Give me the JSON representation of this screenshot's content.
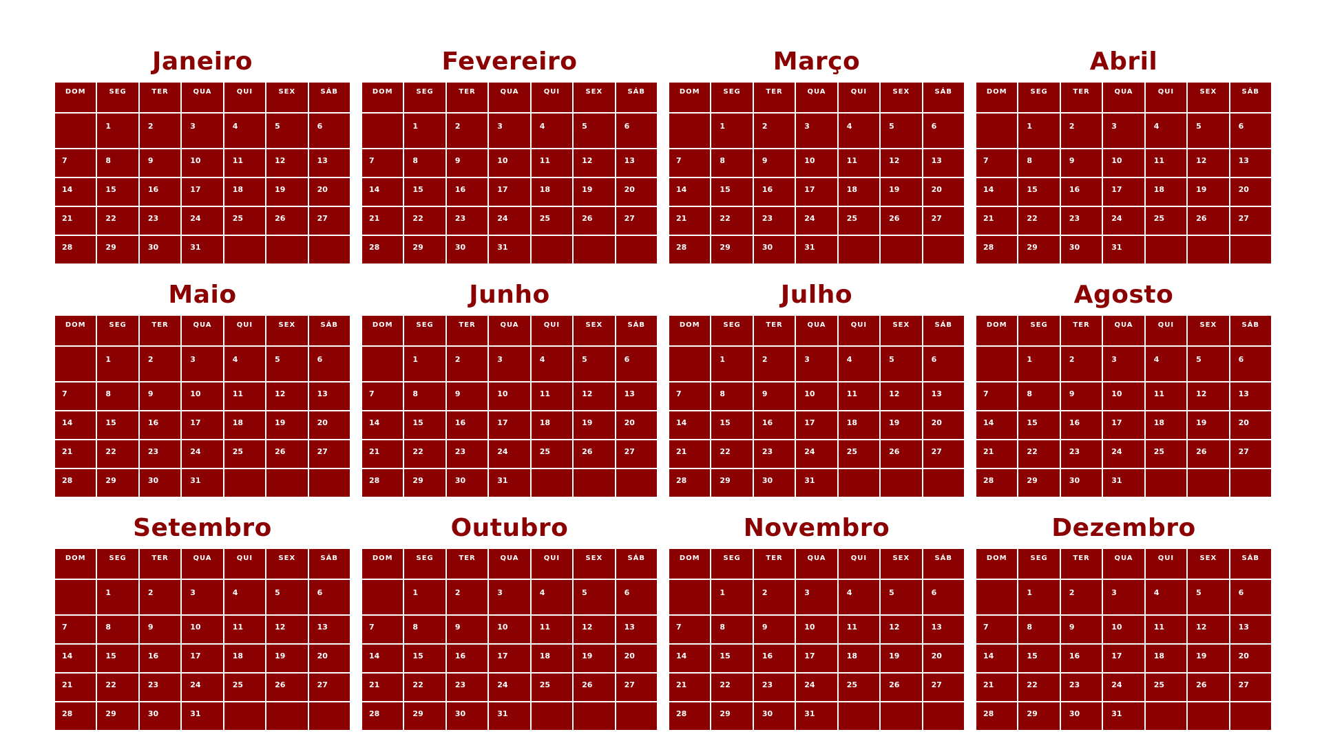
{
  "colors": {
    "accent": "#8b0000",
    "background": "#ffffff",
    "text_on_accent": "#ffffff"
  },
  "weekdays": [
    "DOM",
    "SEG",
    "TER",
    "QUA",
    "QUI",
    "SEX",
    "SÁB"
  ],
  "days_layout": [
    [
      "",
      "1",
      "2",
      "3",
      "4",
      "5",
      "6"
    ],
    [
      "7",
      "8",
      "9",
      "10",
      "11",
      "12",
      "13"
    ],
    [
      "14",
      "15",
      "16",
      "17",
      "18",
      "19",
      "20"
    ],
    [
      "21",
      "22",
      "23",
      "24",
      "25",
      "26",
      "27"
    ],
    [
      "28",
      "29",
      "30",
      "31",
      "",
      "",
      ""
    ]
  ],
  "months": [
    {
      "name": "Janeiro"
    },
    {
      "name": "Fevereiro"
    },
    {
      "name": "Março"
    },
    {
      "name": "Abril"
    },
    {
      "name": "Maio"
    },
    {
      "name": "Junho"
    },
    {
      "name": "Julho"
    },
    {
      "name": "Agosto"
    },
    {
      "name": "Setembro"
    },
    {
      "name": "Outubro"
    },
    {
      "name": "Novembro"
    },
    {
      "name": "Dezembro"
    }
  ]
}
